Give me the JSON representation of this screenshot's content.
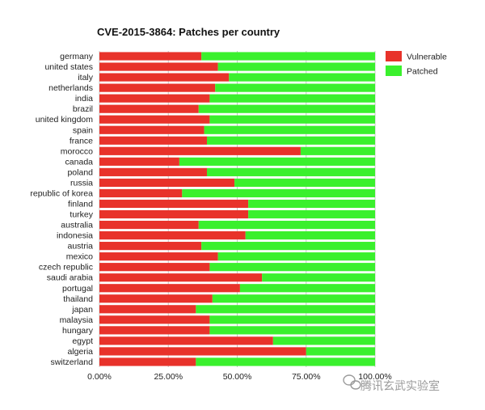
{
  "chart_data": {
    "type": "bar",
    "orientation": "horizontal",
    "stacked": true,
    "percent": true,
    "title": "CVE-2015-3864: Patches per country",
    "categories": [
      "germany",
      "united states",
      "italy",
      "netherlands",
      "india",
      "brazil",
      "united kingdom",
      "spain",
      "france",
      "morocco",
      "canada",
      "poland",
      "russia",
      "republic of korea",
      "finland",
      "turkey",
      "australia",
      "indonesia",
      "austria",
      "mexico",
      "czech republic",
      "saudi arabia",
      "portugal",
      "thailand",
      "japan",
      "malaysia",
      "hungary",
      "egypt",
      "algeria",
      "switzerland"
    ],
    "series": [
      {
        "name": "Vulnerable",
        "color": "#e8322a",
        "values": [
          37,
          43,
          47,
          42,
          40,
          36,
          40,
          38,
          39,
          73,
          29,
          39,
          49,
          30,
          54,
          54,
          36,
          53,
          37,
          43,
          40,
          59,
          51,
          41,
          35,
          40,
          40,
          63,
          75,
          35
        ]
      },
      {
        "name": "Patched",
        "color": "#3af02d",
        "values": [
          63,
          57,
          53,
          58,
          60,
          64,
          60,
          62,
          61,
          27,
          71,
          61,
          51,
          70,
          46,
          46,
          64,
          47,
          63,
          57,
          60,
          41,
          49,
          59,
          65,
          60,
          60,
          37,
          25,
          65
        ]
      }
    ],
    "xlim": [
      0,
      100
    ],
    "xticks": [
      "0.00%",
      "25.00%",
      "50.00%",
      "75.00%",
      "100.00%"
    ],
    "grid": true,
    "legend_position": "right"
  },
  "watermark": {
    "icon": "wechat-icon",
    "text": "腾讯玄武实验室"
  }
}
